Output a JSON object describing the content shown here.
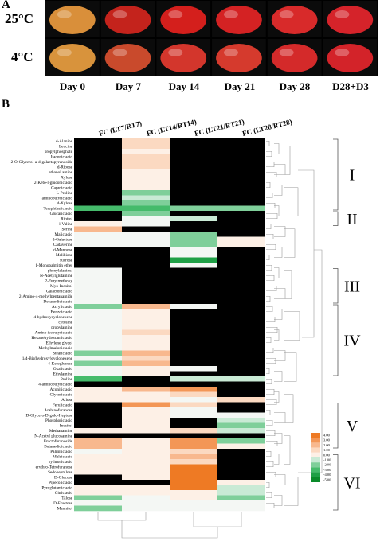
{
  "panel_a": {
    "label": "A",
    "row_labels": [
      "25°C",
      "4°C"
    ],
    "days": [
      "Day 0",
      "Day 7",
      "Day 14",
      "Day 21",
      "Day 28",
      "D28+D3"
    ],
    "photo_colors": [
      [
        "#d98f3a",
        "#c4231c",
        "#d41f1c",
        "#d42223",
        "#d82a2a",
        "#d5232a"
      ],
      [
        "#d8933c",
        "#c94a2c",
        "#d3362c",
        "#d53a2d",
        "#d42a2a",
        "#d32329"
      ]
    ]
  },
  "panel_b": {
    "label": "B",
    "column_headers": [
      "FC (LT7/RT7)",
      "FC (LT14/RT14)",
      "FC (LT21/RT21)",
      "FC (LT28/RT28)"
    ],
    "metabolites": [
      "d-Alanine",
      "Leucine",
      "propylphosphate",
      "Itaconic acid",
      "2-O-Glycerol-a-d-galactopyranoside",
      "d-Ribose",
      "ethanol amine",
      "Xylose",
      "2-Keto-l-gluconic acid",
      "Caproic acid",
      "L-Proline",
      "aminobutyric acid",
      "d-Xylose",
      "Terephthalic acid",
      "Glucaric acid",
      "Ribitol",
      "l-Valine",
      "Serine",
      "Malic acid",
      "d-Galactose",
      "Cadaverine",
      "d-Mannose",
      "Melibiose",
      "sucrose",
      "1-Monopalmitin ether",
      "phenylalanine/",
      "N-Acetylglutamine",
      "2-Furylmethoxy",
      "Myo-Inositol",
      "Galactonic acid",
      "2-Amino-4-methylpentanamide",
      "Decanedioic acid",
      "Acrylic acid",
      "Benzoic acid",
      "4-hydroxycyclohexene",
      "cytosine",
      "propylamine",
      "Amino isobutyric acid",
      "Hexanehydroxamic acid",
      "Ethylene glycol",
      "Methylmalonic acid",
      "Stearic acid",
      "1/4-Bis(hydroxy)cyclohexene",
      "4-Ketoglucose",
      "Oxalic acid",
      "Ethylamine",
      "Proline",
      "4-aminobutyric acid",
      "Aconitic acid",
      "Glyceric acid",
      "Allose",
      "Ferulic acid",
      "Arabinofuranose",
      "D-Glycero-D-gulo-Heptose",
      "Phosphoric acid",
      "Inositol",
      "Methanamine",
      "N-Acetyl glucosamine",
      "Fructofuranoside",
      "Butanedioic acid",
      "Palmitic acid",
      "Maleic acid",
      "rythronic acid",
      "erythro-Tetrofuranose",
      "Sedoheptulose",
      "D-Glucose",
      "Pipecolic acid",
      "Pyroglutamic acid",
      "Citric acid",
      "Talose",
      "D-Fructose",
      "Mannitol"
    ],
    "cluster_labels": [
      "I",
      "II",
      "III",
      "IV",
      "V",
      "VI"
    ],
    "legend_ticks": [
      "4.00",
      "3.00",
      "2.00",
      "1.00",
      "0.00",
      "-1.00",
      "-2.00",
      "-3.00",
      "-4.00",
      "-5.00"
    ],
    "heatmap_values": [
      [
        null,
        1,
        null,
        null
      ],
      [
        null,
        1,
        null,
        null
      ],
      [
        null,
        0.5,
        null,
        null
      ],
      [
        null,
        1,
        null,
        null
      ],
      [
        null,
        1,
        null,
        null
      ],
      [
        null,
        1,
        null,
        null
      ],
      [
        null,
        0.5,
        null,
        null
      ],
      [
        null,
        0.5,
        null,
        null
      ],
      [
        null,
        0.5,
        null,
        null
      ],
      [
        null,
        0.3,
        null,
        null
      ],
      [
        null,
        -2,
        null,
        null
      ],
      [
        null,
        -1,
        null,
        null
      ],
      [
        null,
        -2,
        null,
        null
      ],
      [
        -3,
        -3,
        -2,
        -2
      ],
      [
        null,
        -2,
        null,
        null
      ],
      [
        null,
        0,
        -1,
        null
      ],
      [
        0.5,
        0,
        null,
        null
      ],
      [
        1.5,
        null,
        null,
        null
      ],
      [
        -0.5,
        0,
        -2.5,
        null
      ],
      [
        -0.5,
        0,
        -2.5,
        0.5
      ],
      [
        -0.5,
        0,
        -2.5,
        0.3
      ],
      [
        null,
        null,
        -0.5,
        null
      ],
      [
        null,
        null,
        -0.5,
        null
      ],
      [
        null,
        null,
        -4,
        null
      ],
      [
        null,
        null,
        0,
        null
      ],
      [
        -0.5,
        null,
        null,
        null
      ],
      [
        -0.5,
        null,
        null,
        null
      ],
      [
        -0.5,
        null,
        null,
        null
      ],
      [
        -0.5,
        null,
        null,
        null
      ],
      [
        -0.5,
        null,
        null,
        null
      ],
      [
        -0.5,
        null,
        null,
        null
      ],
      [
        -0.5,
        null,
        null,
        null
      ],
      [
        -2,
        2,
        0,
        null
      ],
      [
        -0.5,
        0.3,
        null,
        null
      ],
      [
        -0.5,
        0.3,
        null,
        null
      ],
      [
        -0.5,
        0.3,
        null,
        null
      ],
      [
        -0.5,
        0.3,
        null,
        null
      ],
      [
        -0.5,
        1,
        null,
        null
      ],
      [
        -0.5,
        0.3,
        null,
        null
      ],
      [
        -0.5,
        0.3,
        null,
        null
      ],
      [
        -0.5,
        0.3,
        null,
        null
      ],
      [
        -2,
        2,
        null,
        null
      ],
      [
        -0.5,
        1,
        null,
        null
      ],
      [
        -2,
        2,
        null,
        null
      ],
      [
        -0.5,
        0.3,
        -0.5,
        null
      ],
      [
        -0.5,
        0.3,
        null,
        null
      ],
      [
        -3,
        null,
        -1,
        -1.5
      ],
      [
        null,
        null,
        null,
        null
      ],
      [
        0.5,
        2,
        2.5,
        null
      ],
      [
        0.5,
        0.5,
        1,
        null
      ],
      [
        0.5,
        0.5,
        0,
        1
      ],
      [
        null,
        3,
        1,
        null
      ],
      [
        null,
        0.5,
        -0.5,
        null
      ],
      [
        null,
        0.5,
        0,
        -0.5
      ],
      [
        null,
        0.5,
        null,
        -1
      ],
      [
        null,
        0.5,
        null,
        -2
      ],
      [
        0.5,
        0.5,
        1,
        -1.5
      ],
      [
        null,
        null,
        null,
        null
      ],
      [
        1.5,
        0.5,
        3,
        -2
      ],
      [
        1.5,
        0.5,
        3,
        0.5
      ],
      [
        -0.5,
        0.5,
        1,
        null
      ],
      [
        0.5,
        0.3,
        2,
        null
      ],
      [
        0.5,
        0.3,
        1,
        null
      ],
      [
        0.5,
        0.3,
        3.5,
        null
      ],
      [
        0.5,
        0.3,
        3.5,
        null
      ],
      [
        null,
        0.3,
        3.5,
        null
      ],
      [
        null,
        null,
        3.5,
        0.5
      ],
      [
        0.5,
        0.3,
        3.5,
        -1.5
      ],
      [
        0.5,
        0.3,
        0.5,
        -1
      ],
      [
        -2,
        -0.5,
        0.5,
        -2
      ],
      [
        -0.5,
        -0.5,
        0,
        0
      ],
      [
        -2,
        -0.5,
        0,
        -0.5
      ]
    ]
  }
}
